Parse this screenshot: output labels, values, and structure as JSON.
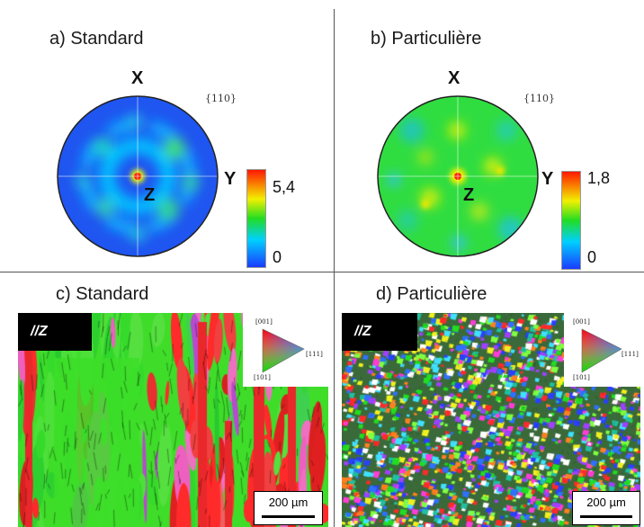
{
  "panels": {
    "a": {
      "title": "a) Standard",
      "axis_x": "X",
      "axis_y": "Y",
      "axis_z": "Z",
      "plane": "{110}",
      "colorbar": {
        "max": "5,4",
        "min": "0"
      }
    },
    "b": {
      "title": "b) Particulière",
      "axis_x": "X",
      "axis_y": "Y",
      "axis_z": "Z",
      "plane": "{110}",
      "colorbar": {
        "max": "1,8",
        "min": "0"
      }
    },
    "c": {
      "title": "c) Standard",
      "direction": "//Z",
      "ipf": {
        "top": "[001]",
        "right": "[111]",
        "bottom": "[101]"
      },
      "scale": "200 µm"
    },
    "d": {
      "title": "d) Particulière",
      "direction": "//Z",
      "ipf": {
        "top": "[001]",
        "right": "[111]",
        "bottom": "[101]"
      },
      "scale": "200 µm"
    }
  },
  "colors": {
    "blue": "#1a3cff",
    "cyan": "#00d0ff",
    "green": "#22dd22",
    "yellow": "#f2f000",
    "red": "#ff2000",
    "divider": "#555555"
  }
}
